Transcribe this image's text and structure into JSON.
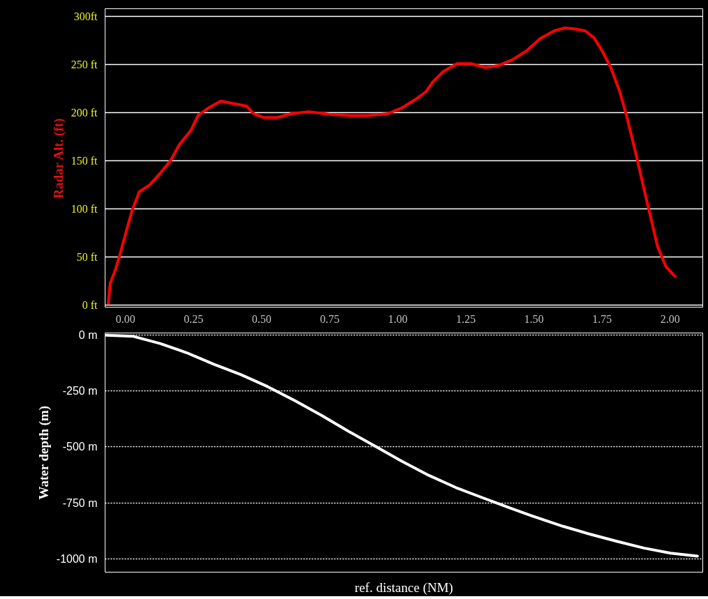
{
  "chart_data": [
    {
      "type": "line",
      "ylabel": "Radar Alt. (ft)",
      "xlim": [
        -0.075,
        2.12
      ],
      "ylim": [
        -2,
        308
      ],
      "xticks": [
        {
          "value": 0,
          "label": "0.00"
        },
        {
          "value": 0.25,
          "label": "0.25"
        },
        {
          "value": 0.5,
          "label": "0.50"
        },
        {
          "value": 0.75,
          "label": "0.75"
        },
        {
          "value": 1,
          "label": "1.00"
        },
        {
          "value": 1.25,
          "label": "1.25"
        },
        {
          "value": 1.5,
          "label": "1.50"
        },
        {
          "value": 1.75,
          "label": "1.75"
        },
        {
          "value": 2,
          "label": "2.00"
        }
      ],
      "yticks": [
        {
          "value": 0,
          "label": "0 ft"
        },
        {
          "value": 50,
          "label": "50 ft"
        },
        {
          "value": 100,
          "label": "100 ft"
        },
        {
          "value": 150,
          "label": "150 ft"
        },
        {
          "value": 200,
          "label": "200 ft"
        },
        {
          "value": 250,
          "label": "250 ft"
        },
        {
          "value": 300,
          "label": "300ft"
        }
      ],
      "grid": "y",
      "marker": "none",
      "line_style": "solid",
      "series": [
        {
          "color": "#ff0000",
          "x": [
            -0.063,
            -0.056,
            -0.038,
            -0.02,
            0,
            0.025,
            0.051,
            0.089,
            0.127,
            0.165,
            0.198,
            0.241,
            0.266,
            0.305,
            0.35,
            0.406,
            0.444,
            0.47,
            0.508,
            0.558,
            0.609,
            0.673,
            0.761,
            0.825,
            0.888,
            0.964,
            1.015,
            1.066,
            1.104,
            1.129,
            1.168,
            1.218,
            1.269,
            1.32,
            1.371,
            1.421,
            1.472,
            1.523,
            1.574,
            1.612,
            1.65,
            1.688,
            1.72,
            1.751,
            1.782,
            1.815,
            1.84,
            1.873,
            1.904,
            1.929,
            1.954,
            1.985,
            2.018
          ],
          "values": [
            2,
            23,
            36,
            53,
            74,
            99,
            118,
            125,
            137,
            150,
            167,
            182,
            197,
            205,
            212,
            209,
            207,
            199,
            195,
            195,
            199,
            201,
            198,
            197,
            197,
            199,
            205,
            214,
            222,
            232,
            243,
            251,
            251,
            247,
            249,
            255,
            264,
            277,
            285,
            288,
            287,
            285,
            278,
            264,
            247,
            222,
            197,
            159,
            121,
            91,
            61,
            40,
            30
          ]
        }
      ]
    },
    {
      "type": "line",
      "ylabel": "Water depth (m)",
      "xlabel": "ref. distance (NM)",
      "categories": [
        null,
        null,
        null,
        null,
        null,
        null,
        null,
        null,
        null,
        null,
        null,
        null,
        null,
        null,
        null,
        null,
        null,
        null,
        null,
        null,
        null,
        null,
        null
      ],
      "ylim": [
        -1060,
        10
      ],
      "yticks": [
        {
          "value": 0,
          "label": "0 m"
        },
        {
          "value": -250,
          "label": "-250 m"
        },
        {
          "value": -500,
          "label": "-500 m"
        },
        {
          "value": -750,
          "label": "-750 m"
        },
        {
          "value": -1000,
          "label": "-1000 m"
        }
      ],
      "tick_labels": "y",
      "grid": "y",
      "marker": "none",
      "line_style": "solid",
      "series": [
        {
          "color": "#ffffff",
          "values": [
            0,
            -5,
            -37,
            -79,
            -130,
            -176,
            -230,
            -292,
            -358,
            -429,
            -496,
            -564,
            -627,
            -681,
            -727,
            -772,
            -815,
            -855,
            -890,
            -922,
            -952,
            -975,
            -988
          ]
        }
      ]
    }
  ]
}
